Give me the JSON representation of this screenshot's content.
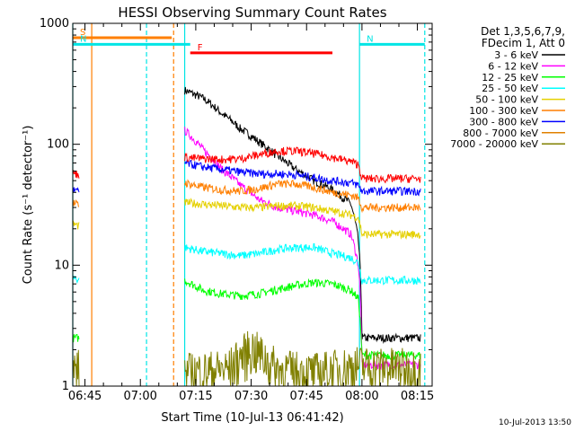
{
  "chart_data": {
    "type": "line",
    "title": "HESSI Observing Summary Count Rates",
    "xlabel": "Start Time (10-Jul-13 06:41:42)",
    "ylabel": "Count Rate (s⁻¹ detector⁻¹)",
    "y_scale": "log",
    "ylim": [
      1,
      1000
    ],
    "xlim": [
      "06:41:42",
      "08:19:00"
    ],
    "x_ticks": [
      "06:45",
      "07:00",
      "07:15",
      "07:30",
      "07:45",
      "08:00",
      "08:15"
    ],
    "y_ticks": [
      "1",
      "10",
      "100",
      "1000"
    ],
    "timestamp": "10-Jul-2013 13:50",
    "legend": {
      "placement": "right",
      "header": [
        "Det 1,3,5,6,7,9,",
        "FDecim 1, Att 0"
      ]
    },
    "flags": [
      {
        "label": "S",
        "color": "#ff7f00",
        "start": "06:41:42",
        "end": "07:08:30",
        "level": 760
      },
      {
        "label": "N",
        "color": "#00e5e5",
        "start": "06:41:42",
        "end": "07:13:30",
        "level": 670
      },
      {
        "label": "N",
        "color": "#00e5e5",
        "start": "07:59:20",
        "end": "08:17:00",
        "level": 670
      },
      {
        "label": "F",
        "color": "#ff0000",
        "start": "07:13:30",
        "end": "07:52:00",
        "level": 570
      }
    ],
    "vlines": [
      {
        "time": "06:41:42",
        "color": "#00e5e5",
        "style": "solid"
      },
      {
        "time": "06:46:50",
        "color": "#ff7f00",
        "style": "solid"
      },
      {
        "time": "07:01:40",
        "color": "#00e5e5",
        "style": "dashed"
      },
      {
        "time": "07:09:00",
        "color": "#ff7f00",
        "style": "dashed"
      },
      {
        "time": "07:12:00",
        "color": "#00e5e5",
        "style": "solid"
      },
      {
        "time": "07:59:20",
        "color": "#00e5e5",
        "style": "solid"
      },
      {
        "time": "08:17:00",
        "color": "#00e5e5",
        "style": "dashed"
      }
    ],
    "gaps": [
      [
        "06:43:30",
        "07:12:00"
      ]
    ],
    "series": [
      {
        "name": "3 - 6 keV",
        "color": "#000000",
        "x": [
          "07:12",
          "07:17",
          "07:22",
          "07:27",
          "07:32",
          "07:37",
          "07:42",
          "07:47",
          "07:52",
          "07:57",
          "07:59",
          "08:00",
          "08:05",
          "08:10",
          "08:16"
        ],
        "y": [
          280,
          240,
          180,
          135,
          105,
          80,
          62,
          50,
          42,
          32,
          16,
          2.5,
          2.5,
          2.5,
          2.5
        ]
      },
      {
        "name": "6 - 12 keV",
        "color": "#ff00ff",
        "x": [
          "07:12",
          "07:17",
          "07:22",
          "07:27",
          "07:32",
          "07:37",
          "07:42",
          "07:47",
          "07:52",
          "07:57",
          "07:59",
          "08:00",
          "08:05",
          "08:10",
          "08:16"
        ],
        "y": [
          130,
          90,
          62,
          46,
          35,
          30,
          28,
          26,
          23,
          18,
          10,
          1.5,
          1.5,
          1.5,
          1.5
        ]
      },
      {
        "name": "12 - 25 keV",
        "color": "#00ff00",
        "x": [
          "06:41:42",
          "06:43:30",
          "07:12",
          "07:17",
          "07:22",
          "07:27",
          "07:32",
          "07:37",
          "07:42",
          "07:47",
          "07:52",
          "07:57",
          "07:59",
          "08:00",
          "08:05",
          "08:10",
          "08:16"
        ],
        "y": [
          2.5,
          2.5,
          7.5,
          6.2,
          5.8,
          5.6,
          5.8,
          6.3,
          6.8,
          7.2,
          7.0,
          6.2,
          5.3,
          1.8,
          1.8,
          1.8,
          1.8
        ]
      },
      {
        "name": "25 - 50 keV",
        "color": "#00ffff",
        "x": [
          "06:41:42",
          "06:43:30",
          "07:12",
          "07:17",
          "07:22",
          "07:27",
          "07:32",
          "07:37",
          "07:42",
          "07:47",
          "07:52",
          "07:57",
          "07:59",
          "08:00",
          "08:05",
          "08:10",
          "08:16"
        ],
        "y": [
          8,
          7.5,
          14,
          13,
          12.5,
          12,
          12.5,
          13.5,
          14,
          14,
          12.5,
          11.5,
          10.5,
          7.5,
          7.5,
          7.5,
          7.5
        ]
      },
      {
        "name": "50 - 100 keV",
        "color": "#e5d000",
        "x": [
          "06:41:42",
          "06:43:30",
          "07:12",
          "07:17",
          "07:22",
          "07:27",
          "07:32",
          "07:37",
          "07:42",
          "07:47",
          "07:52",
          "07:57",
          "07:59",
          "08:00",
          "08:05",
          "08:10",
          "08:16"
        ],
        "y": [
          22,
          21,
          33,
          32,
          31,
          30,
          30,
          31,
          31,
          30,
          28,
          26,
          25,
          18,
          18,
          18,
          18
        ]
      },
      {
        "name": "100 - 300 keV",
        "color": "#ff7f00",
        "x": [
          "06:41:42",
          "06:43:30",
          "07:12",
          "07:17",
          "07:22",
          "07:27",
          "07:32",
          "07:37",
          "07:42",
          "07:47",
          "07:52",
          "07:57",
          "07:59",
          "08:00",
          "08:05",
          "08:10",
          "08:16"
        ],
        "y": [
          33,
          31,
          48,
          44,
          42,
          41,
          43,
          47,
          47,
          44,
          40,
          38,
          36,
          30,
          30,
          30,
          30
        ]
      },
      {
        "name": "300 - 800 keV",
        "color": "#0000ff",
        "x": [
          "06:41:42",
          "06:43:30",
          "07:12",
          "07:17",
          "07:22",
          "07:27",
          "07:32",
          "07:37",
          "07:42",
          "07:47",
          "07:52",
          "07:57",
          "07:59",
          "08:00",
          "08:05",
          "08:10",
          "08:16"
        ],
        "y": [
          42,
          40,
          70,
          65,
          62,
          59,
          57,
          57,
          56,
          53,
          50,
          48,
          46,
          41,
          41,
          41,
          41
        ]
      },
      {
        "name": "800 - 7000 keV",
        "color": "#e08000",
        "x": [],
        "y": []
      },
      {
        "name": "7000 - 20000 keV",
        "color": "#808000",
        "x": [
          "06:41:42",
          "06:43:30",
          "07:12",
          "07:24",
          "07:30",
          "07:37",
          "07:47",
          "07:59",
          "08:16"
        ],
        "y": [
          1.4,
          1.4,
          1.3,
          1.4,
          2.1,
          1.4,
          1.3,
          1.5,
          1.4
        ]
      },
      {
        "name": "",
        "color": "#ff0000",
        "x": [
          "06:41:42",
          "06:43:30",
          "07:12",
          "07:17",
          "07:22",
          "07:27",
          "07:32",
          "07:37",
          "07:42",
          "07:47",
          "07:52",
          "07:57",
          "07:59",
          "08:00",
          "08:05",
          "08:10",
          "08:16"
        ],
        "y": [
          58,
          56,
          78,
          76,
          75,
          76,
          82,
          88,
          88,
          84,
          78,
          72,
          68,
          52,
          52,
          52,
          52
        ]
      }
    ]
  }
}
